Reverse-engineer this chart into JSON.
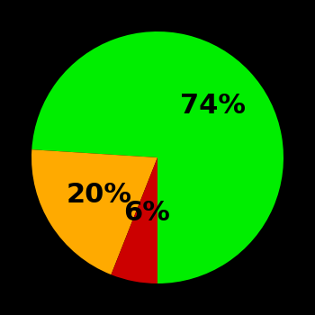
{
  "slices": [
    74,
    20,
    6
  ],
  "colors": [
    "#00ee00",
    "#ffaa00",
    "#cc0000"
  ],
  "labels": [
    "74%",
    "20%",
    "6%"
  ],
  "background_color": "#000000",
  "startangle": -90,
  "label_fontsize": 22,
  "label_fontweight": "bold",
  "label_color": "#000000"
}
